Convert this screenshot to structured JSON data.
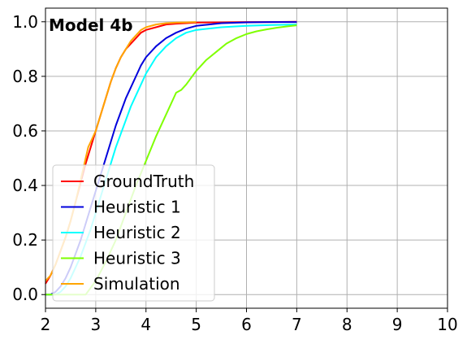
{
  "chart_data": {
    "type": "line",
    "annotation": "Model 4b",
    "xlim": [
      2,
      10
    ],
    "ylim": [
      -0.05,
      1.05
    ],
    "x_ticks": [
      2,
      3,
      4,
      5,
      6,
      7,
      8,
      9,
      10
    ],
    "x_tick_labels": [
      "2",
      "3",
      "4",
      "5",
      "6",
      "7",
      "8",
      "9",
      "10"
    ],
    "y_ticks": [
      0.0,
      0.2,
      0.4,
      0.6,
      0.8,
      1.0
    ],
    "y_tick_labels": [
      "0.0",
      "0.2",
      "0.4",
      "0.6",
      "0.8",
      "1.0"
    ],
    "grid": true,
    "legend_position": "lower-left",
    "series": [
      {
        "name": "GroundTruth",
        "color": "#ff0000",
        "x": [
          2.0,
          2.1,
          2.2,
          2.3,
          2.4,
          2.5,
          2.6,
          2.7,
          2.8,
          2.9,
          3.0,
          3.1,
          3.2,
          3.3,
          3.4,
          3.5,
          3.6,
          3.7,
          3.8,
          3.9,
          4.0,
          4.2,
          4.4,
          4.6,
          4.8,
          5.0,
          5.5,
          6.0,
          6.5,
          7.0
        ],
        "y": [
          0.04,
          0.07,
          0.11,
          0.16,
          0.21,
          0.27,
          0.34,
          0.41,
          0.48,
          0.54,
          0.6,
          0.66,
          0.72,
          0.78,
          0.83,
          0.87,
          0.9,
          0.92,
          0.94,
          0.96,
          0.97,
          0.98,
          0.99,
          0.993,
          0.995,
          0.997,
          0.998,
          0.999,
          0.999,
          1.0
        ]
      },
      {
        "name": "Heuristic 1",
        "color": "#0000dd",
        "x": [
          2.0,
          2.1,
          2.2,
          2.3,
          2.4,
          2.5,
          2.6,
          2.7,
          2.8,
          2.9,
          3.0,
          3.1,
          3.2,
          3.3,
          3.4,
          3.5,
          3.6,
          3.7,
          3.8,
          3.9,
          4.0,
          4.2,
          4.4,
          4.6,
          4.8,
          5.0,
          5.5,
          6.0,
          6.5,
          7.0
        ],
        "y": [
          0.0,
          0.0,
          0.01,
          0.03,
          0.06,
          0.1,
          0.15,
          0.2,
          0.26,
          0.32,
          0.38,
          0.44,
          0.5,
          0.56,
          0.62,
          0.67,
          0.72,
          0.76,
          0.8,
          0.84,
          0.87,
          0.91,
          0.94,
          0.96,
          0.975,
          0.985,
          0.995,
          0.998,
          0.999,
          0.999
        ]
      },
      {
        "name": "Heuristic 2",
        "color": "#00ffff",
        "x": [
          2.0,
          2.1,
          2.2,
          2.3,
          2.4,
          2.5,
          2.6,
          2.7,
          2.8,
          2.9,
          3.0,
          3.1,
          3.2,
          3.3,
          3.4,
          3.5,
          3.6,
          3.7,
          3.8,
          3.9,
          4.0,
          4.2,
          4.4,
          4.6,
          4.8,
          5.0,
          5.5,
          6.0,
          6.5,
          7.0
        ],
        "y": [
          0.0,
          0.0,
          0.0,
          0.01,
          0.03,
          0.06,
          0.1,
          0.14,
          0.19,
          0.24,
          0.3,
          0.36,
          0.42,
          0.48,
          0.54,
          0.59,
          0.64,
          0.69,
          0.73,
          0.77,
          0.81,
          0.87,
          0.91,
          0.94,
          0.96,
          0.97,
          0.98,
          0.985,
          0.988,
          0.99
        ]
      },
      {
        "name": "Heuristic 3",
        "color": "#7fff00",
        "x": [
          2.0,
          2.2,
          2.4,
          2.6,
          2.8,
          3.0,
          3.2,
          3.4,
          3.6,
          3.8,
          4.0,
          4.2,
          4.4,
          4.6,
          4.7,
          4.8,
          5.0,
          5.2,
          5.4,
          5.6,
          5.8,
          6.0,
          6.2,
          6.4,
          6.6,
          6.8,
          7.0
        ],
        "y": [
          0.0,
          0.0,
          0.0,
          0.0,
          0.0,
          0.05,
          0.12,
          0.2,
          0.3,
          0.4,
          0.49,
          0.58,
          0.66,
          0.74,
          0.75,
          0.77,
          0.82,
          0.86,
          0.89,
          0.92,
          0.94,
          0.955,
          0.965,
          0.972,
          0.978,
          0.983,
          0.987
        ]
      },
      {
        "name": "Simulation",
        "color": "#ffa500",
        "x": [
          2.0,
          2.1,
          2.2,
          2.3,
          2.4,
          2.5,
          2.6,
          2.7,
          2.8,
          2.85,
          2.9,
          3.0,
          3.1,
          3.2,
          3.3,
          3.4,
          3.5,
          3.6,
          3.7,
          3.8,
          3.9,
          4.0,
          4.2,
          4.4,
          4.6,
          4.8,
          5.0
        ],
        "y": [
          0.05,
          0.07,
          0.11,
          0.16,
          0.21,
          0.27,
          0.34,
          0.42,
          0.5,
          0.54,
          0.56,
          0.6,
          0.66,
          0.72,
          0.78,
          0.83,
          0.87,
          0.9,
          0.93,
          0.95,
          0.97,
          0.98,
          0.99,
          0.995,
          0.997,
          0.998,
          0.999
        ]
      }
    ]
  }
}
